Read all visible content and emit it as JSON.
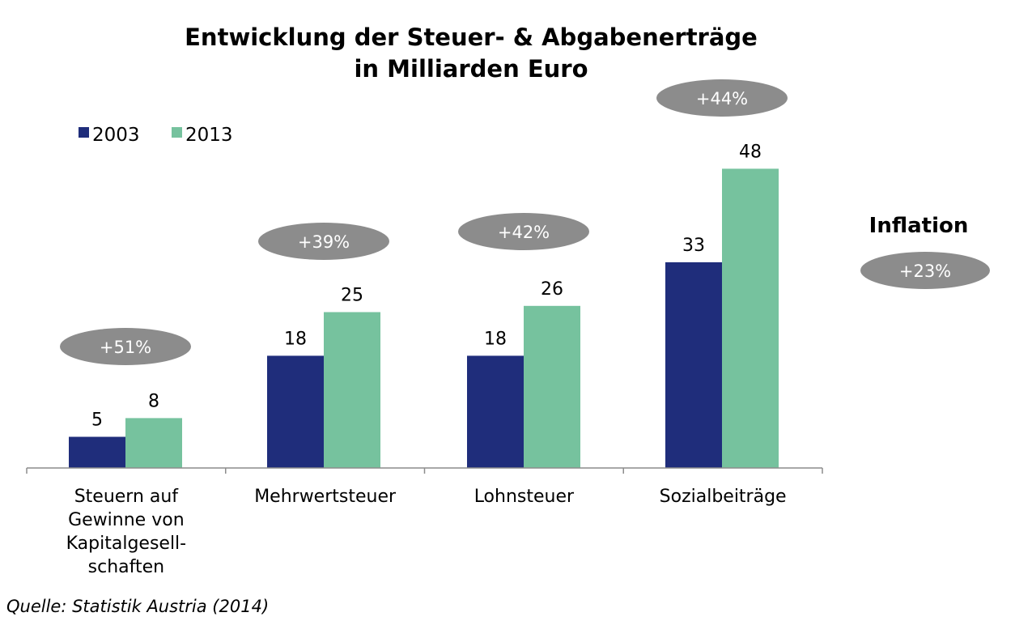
{
  "chart_data": {
    "type": "bar",
    "title_lines": [
      "Entwicklung der Steuer- & Abgabenerträge",
      "in Milliarden Euro"
    ],
    "categories": [
      [
        "Steuern auf",
        "Gewinne von",
        "Kapitalgesell-",
        "schaften"
      ],
      [
        "Mehrwertsteuer"
      ],
      [
        "Lohnsteuer"
      ],
      [
        "Sozialbeiträge"
      ]
    ],
    "series": [
      {
        "name": "2003",
        "color": "#1f2d7b",
        "values": [
          5,
          18,
          18,
          33
        ]
      },
      {
        "name": "2013",
        "color": "#76c29e",
        "values": [
          8,
          25,
          26,
          48
        ]
      }
    ],
    "growth_labels": [
      "+51%",
      "+39%",
      "+42%",
      "+44%"
    ],
    "inflation": {
      "label": "Inflation",
      "value": "+23%"
    },
    "ylim": [
      0,
      52
    ],
    "legend_position": "top-left",
    "grid": false,
    "badge_color": "#8c8c8c",
    "axis_color": "#8c8c8c"
  },
  "source": "Quelle: Statistik Austria (2014)"
}
